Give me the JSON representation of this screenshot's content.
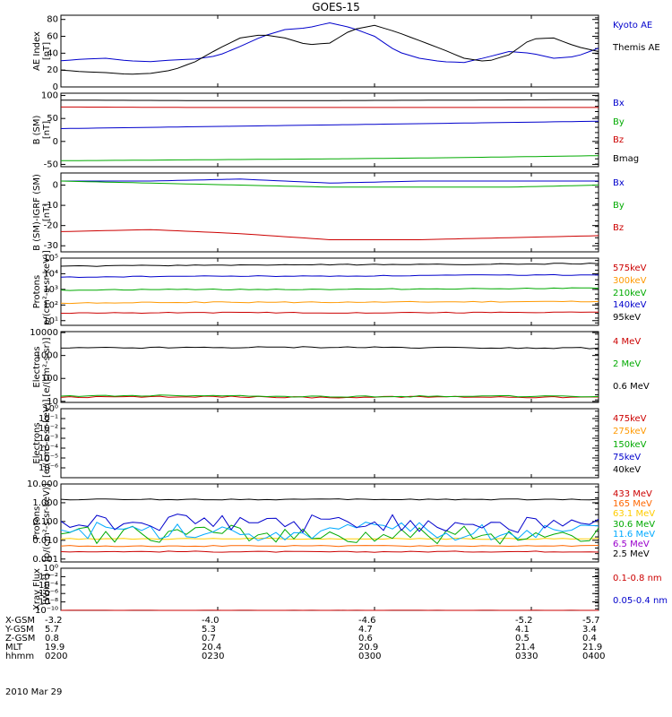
{
  "title": "GOES-15",
  "panels": [
    {
      "id": "ae",
      "ylabel": [
        "AE Index",
        "[nT]"
      ],
      "scale": "linear",
      "ylim": [
        0,
        85
      ],
      "ticks": [
        {
          "v": 0,
          "label": "0"
        },
        {
          "v": 20,
          "label": "20"
        },
        {
          "v": 40,
          "label": "40"
        },
        {
          "v": 60,
          "label": "60"
        },
        {
          "v": 80,
          "label": "80"
        }
      ],
      "legend": [
        {
          "label": "Kyoto AE",
          "color": "#0000cc"
        },
        {
          "label": "Themis AE",
          "color": "#000000"
        }
      ]
    },
    {
      "id": "bsm",
      "ylabel": [
        "B (SM)",
        "[nT]"
      ],
      "scale": "linear",
      "ylim": [
        -55,
        105
      ],
      "ticks": [
        {
          "v": -50,
          "label": "-50"
        },
        {
          "v": 0,
          "label": "0"
        },
        {
          "v": 50,
          "label": "50"
        },
        {
          "v": 100,
          "label": "100"
        }
      ],
      "legend": [
        {
          "label": "Bx",
          "color": "#0000cc"
        },
        {
          "label": "By",
          "color": "#00aa00"
        },
        {
          "label": "Bz",
          "color": "#cc0000"
        },
        {
          "label": "Bmag",
          "color": "#000000"
        }
      ]
    },
    {
      "id": "bigrf",
      "ylabel": [
        "B (SM)-IGRF (SM)",
        "[nT]"
      ],
      "scale": "linear",
      "ylim": [
        -33,
        6
      ],
      "ticks": [
        {
          "v": -30,
          "label": "-30"
        },
        {
          "v": -20,
          "label": "-20"
        },
        {
          "v": -10,
          "label": "-10"
        },
        {
          "v": 0,
          "label": "0"
        }
      ],
      "legend": [
        {
          "label": "Bx",
          "color": "#0000cc"
        },
        {
          "label": "By",
          "color": "#00aa00"
        },
        {
          "label": "Bz",
          "color": "#cc0000"
        }
      ]
    },
    {
      "id": "protons_kev",
      "ylabel": [
        "Protons",
        "p/(cm²-s-sr-keV)]"
      ],
      "scale": "log",
      "ylim": [
        5,
        100000
      ],
      "ticks": [
        {
          "v": 10,
          "label": "10¹"
        },
        {
          "v": 100,
          "label": "10²"
        },
        {
          "v": 1000,
          "label": "10³"
        },
        {
          "v": 10000,
          "label": "10⁴"
        },
        {
          "v": 100000,
          "label": "10⁵"
        }
      ],
      "legend": [
        {
          "label": "575keV",
          "color": "#cc0000"
        },
        {
          "label": "300keV",
          "color": "#ff9900"
        },
        {
          "label": "210keV",
          "color": "#00aa00"
        },
        {
          "label": "140keV",
          "color": "#0000cc"
        },
        {
          "label": "95keV",
          "color": "#000000"
        }
      ]
    },
    {
      "id": "electrons_mev",
      "ylabel": [
        "Electrons",
        "[e/(cm²-s-sr)]"
      ],
      "scale": "log",
      "ylim": [
        9,
        11000
      ],
      "ticks": [
        {
          "v": 10,
          "label": "10"
        },
        {
          "v": 100,
          "label": "100"
        },
        {
          "v": 1000,
          "label": "1000"
        },
        {
          "v": 10000,
          "label": "10000"
        }
      ],
      "legend": [
        {
          "label": "4 MeV",
          "color": "#cc0000"
        },
        {
          "label": "2 MeV",
          "color": "#00aa00"
        },
        {
          "label": "0.6 MeV",
          "color": "#000000"
        }
      ]
    },
    {
      "id": "electrons_kev",
      "ylabel": [
        "Electrons",
        "[e/(cm²-s-sr-keV)]"
      ],
      "scale": "log",
      "ylim": [
        1e-07,
        1
      ],
      "ticks": [
        {
          "v": 1,
          "label": "10⁰"
        },
        {
          "v": 0.1,
          "label": "10⁻¹"
        },
        {
          "v": 0.01,
          "label": "10⁻²"
        },
        {
          "v": 0.001,
          "label": "10⁻³"
        },
        {
          "v": 0.0001,
          "label": "10⁻⁴"
        },
        {
          "v": 1e-05,
          "label": "10⁻⁵"
        },
        {
          "v": 1e-06,
          "label": "10⁻⁶"
        }
      ],
      "legend": [
        {
          "label": "475keV",
          "color": "#cc0000"
        },
        {
          "label": "275keV",
          "color": "#ff9900"
        },
        {
          "label": "150keV",
          "color": "#00aa00"
        },
        {
          "label": "75keV",
          "color": "#0000cc"
        },
        {
          "label": "40keV",
          "color": "#000000"
        }
      ]
    },
    {
      "id": "protons_mev",
      "ylabel": [
        "Protons",
        "[p/(cm²-s-sr-keV)]"
      ],
      "scale": "log",
      "ylim": [
        0.0007,
        10
      ],
      "ticks": [
        {
          "v": 10,
          "label": "10.000"
        },
        {
          "v": 1,
          "label": "1.000"
        },
        {
          "v": 0.1,
          "label": "0.100"
        },
        {
          "v": 0.01,
          "label": "0.010"
        },
        {
          "v": 0.001,
          "label": "0.001"
        }
      ],
      "legend": [
        {
          "label": "433 MeV",
          "color": "#cc0000"
        },
        {
          "label": "165 MeV",
          "color": "#ff6600"
        },
        {
          "label": "63.1 MeV",
          "color": "#ffcc00"
        },
        {
          "label": "30.6 MeV",
          "color": "#00aa00"
        },
        {
          "label": "11.6 MeV",
          "color": "#00aaff"
        },
        {
          "label": "6.5 MeV",
          "color": "#9900cc"
        },
        {
          "label": "2.5 MeV",
          "color": "#000000"
        }
      ]
    },
    {
      "id": "xray",
      "ylabel": [
        "Xray Flux",
        "[W/m²]"
      ],
      "scale": "log",
      "ylim": [
        1e-10,
        1
      ],
      "ticks": [
        {
          "v": 1,
          "label": "10⁰"
        },
        {
          "v": 0.01,
          "label": "10⁻²"
        },
        {
          "v": 0.0001,
          "label": "10⁻⁴"
        },
        {
          "v": 1e-06,
          "label": "10⁻⁶"
        },
        {
          "v": 1e-08,
          "label": "10⁻⁸"
        },
        {
          "v": 1e-10,
          "label": "10⁻¹⁰"
        }
      ],
      "legend": [
        {
          "label": "0.1-0.8 nm",
          "color": "#cc0000"
        },
        {
          "label": "0.05-0.4 nm",
          "color": "#0000cc"
        }
      ]
    }
  ],
  "footer": {
    "rows": [
      {
        "label": "X-GSM",
        "values": [
          "-3.2",
          "-4.0",
          "-4.6",
          "-5.2",
          "-5.7"
        ]
      },
      {
        "label": "Y-GSM",
        "values": [
          "5.7",
          "5.3",
          "4.7",
          "4.1",
          "3.4"
        ]
      },
      {
        "label": "Z-GSM",
        "values": [
          "0.8",
          "0.7",
          "0.6",
          "0.5",
          "0.4"
        ]
      },
      {
        "label": "MLT",
        "values": [
          "19.9",
          "20.4",
          "20.9",
          "21.4",
          "21.9"
        ]
      },
      {
        "label": "hhmm",
        "values": [
          "0200",
          "0230",
          "0300",
          "0330",
          "0400"
        ]
      }
    ],
    "date": "2010 Mar 29"
  },
  "chart_data": {
    "type": "line",
    "title": "GOES-15",
    "x_ticks": [
      "0200",
      "0230",
      "0300",
      "0330",
      "0400"
    ],
    "x_minutes": [
      0,
      120
    ],
    "series": {
      "ae": [
        {
          "name": "Kyoto AE",
          "color": "#0000cc",
          "x": [
            0,
            5,
            10,
            15,
            20,
            25,
            30,
            35,
            40,
            45,
            50,
            55,
            60,
            65,
            70,
            75,
            80,
            85,
            90,
            95,
            100,
            105,
            110,
            115,
            120
          ],
          "values": [
            31,
            33,
            34,
            31,
            30,
            32,
            33,
            37,
            48,
            60,
            68,
            70,
            76,
            70,
            60,
            42,
            34,
            30,
            29,
            35,
            42,
            40,
            34,
            36,
            46
          ]
        },
        {
          "name": "Themis AE",
          "color": "#000000",
          "x": [
            0,
            5,
            10,
            15,
            20,
            25,
            30,
            35,
            40,
            45,
            50,
            55,
            60,
            65,
            70,
            75,
            80,
            85,
            90,
            95,
            100,
            105,
            110,
            115,
            120
          ],
          "values": [
            20,
            18,
            17,
            15,
            16,
            20,
            30,
            45,
            58,
            62,
            58,
            50,
            52,
            68,
            73,
            65,
            55,
            45,
            34,
            30,
            38,
            57,
            58,
            48,
            42
          ]
        }
      ],
      "bsm": [
        {
          "name": "Bx",
          "color": "#0000cc",
          "x": [
            0,
            30,
            60,
            90,
            120
          ],
          "values": [
            28,
            32,
            36,
            40,
            44
          ]
        },
        {
          "name": "By",
          "color": "#00aa00",
          "x": [
            0,
            30,
            60,
            90,
            120
          ],
          "values": [
            -42,
            -40,
            -38,
            -35,
            -31
          ]
        },
        {
          "name": "Bz",
          "color": "#cc0000",
          "x": [
            0,
            30,
            60,
            90,
            120
          ],
          "values": [
            75,
            74,
            74,
            74,
            74
          ]
        },
        {
          "name": "Bmag",
          "color": "#000000",
          "x": [
            0,
            30,
            60,
            90,
            120
          ],
          "values": [
            90,
            89,
            89,
            90,
            91
          ]
        }
      ],
      "bigrf": [
        {
          "name": "Bx",
          "color": "#0000cc",
          "x": [
            0,
            20,
            40,
            60,
            80,
            100,
            120
          ],
          "values": [
            2,
            2,
            3,
            1,
            2,
            2,
            2
          ]
        },
        {
          "name": "By",
          "color": "#00aa00",
          "x": [
            0,
            20,
            40,
            60,
            80,
            100,
            120
          ],
          "values": [
            2,
            1,
            0,
            -1,
            -1,
            -1,
            0
          ]
        },
        {
          "name": "Bz",
          "color": "#cc0000",
          "x": [
            0,
            20,
            40,
            60,
            80,
            100,
            120
          ],
          "values": [
            -23,
            -22,
            -24,
            -27,
            -27,
            -26,
            -25
          ]
        }
      ],
      "protons_kev": [
        {
          "name": "575keV",
          "color": "#cc0000",
          "x": [
            0,
            30,
            60,
            90,
            120
          ],
          "values": [
            30,
            33,
            32,
            33,
            35
          ]
        },
        {
          "name": "300keV",
          "color": "#ff9900",
          "x": [
            0,
            30,
            60,
            90,
            120
          ],
          "values": [
            130,
            150,
            150,
            160,
            170
          ]
        },
        {
          "name": "210keV",
          "color": "#00aa00",
          "x": [
            0,
            30,
            60,
            90,
            120
          ],
          "values": [
            900,
            1000,
            1000,
            1100,
            1200
          ]
        },
        {
          "name": "140keV",
          "color": "#0000cc",
          "x": [
            0,
            30,
            60,
            90,
            120
          ],
          "values": [
            6000,
            7000,
            7000,
            8000,
            8500
          ]
        },
        {
          "name": "95keV",
          "color": "#000000",
          "x": [
            0,
            30,
            60,
            90,
            120
          ],
          "values": [
            30000,
            35000,
            38000,
            40000,
            45000
          ]
        }
      ],
      "electrons_mev": [
        {
          "name": "4 MeV",
          "color": "#cc0000",
          "x": [
            0,
            30,
            60,
            90,
            120
          ],
          "values": [
            15,
            16,
            15,
            16,
            15
          ]
        },
        {
          "name": "2 MeV",
          "color": "#00aa00",
          "x": [
            0,
            30,
            60,
            90,
            120
          ],
          "values": [
            17,
            18,
            16,
            17,
            16
          ]
        },
        {
          "name": "0.6 MeV",
          "color": "#000000",
          "x": [
            0,
            30,
            60,
            90,
            120
          ],
          "values": [
            2100,
            2200,
            2300,
            2200,
            2100
          ]
        }
      ],
      "electrons_kev": [],
      "protons_mev": [
        {
          "name": "433 MeV",
          "color": "#cc0000",
          "x": [
            0,
            30,
            60,
            90,
            120
          ],
          "values": [
            0.0025,
            0.0025,
            0.0024,
            0.0025,
            0.0025
          ]
        },
        {
          "name": "165 MeV",
          "color": "#ff6600",
          "x": [
            0,
            30,
            60,
            90,
            120
          ],
          "values": [
            0.005,
            0.005,
            0.005,
            0.005,
            0.005
          ]
        },
        {
          "name": "63.1 MeV",
          "color": "#ffcc00",
          "x": [
            0,
            30,
            60,
            90,
            120
          ],
          "values": [
            0.012,
            0.012,
            0.012,
            0.012,
            0.012
          ]
        },
        {
          "name": "30.6 MeV",
          "color": "#00aa00",
          "x": [
            0,
            30,
            60,
            90,
            120
          ],
          "values": [
            0.02,
            0.02,
            0.02,
            0.02,
            0.02
          ]
        },
        {
          "name": "11.6 MeV",
          "color": "#00aaff",
          "x": [
            0,
            30,
            60,
            90,
            120
          ],
          "values": [
            0.03,
            0.03,
            0.03,
            0.03,
            0.03
          ]
        },
        {
          "name": "6.5 MeV",
          "color": "#0000cc",
          "x": [
            0,
            30,
            60,
            90,
            120
          ],
          "values": [
            0.08,
            0.08,
            0.08,
            0.08,
            0.08
          ]
        },
        {
          "name": "2.5 MeV",
          "color": "#000000",
          "x": [
            0,
            30,
            60,
            90,
            120
          ],
          "values": [
            1.5,
            1.5,
            1.5,
            1.5,
            1.5
          ]
        }
      ],
      "xray": [
        {
          "name": "0.1-0.8 nm",
          "color": "#cc0000",
          "x": [
            0,
            120
          ],
          "values": [
            1e-10,
            1e-10
          ]
        }
      ]
    }
  }
}
